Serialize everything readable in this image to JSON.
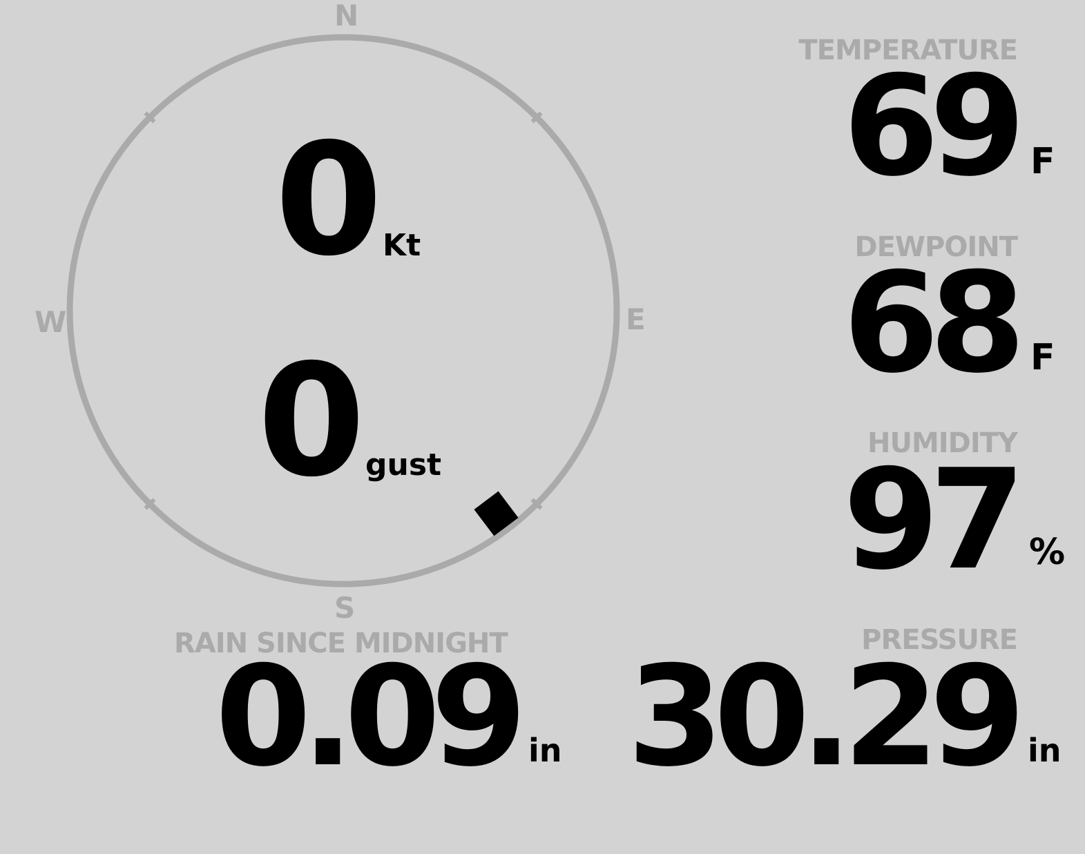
{
  "compass": {
    "north": "N",
    "south": "S",
    "east": "E",
    "west": "W",
    "wind_direction_deg": 143,
    "ring_color": "#aaaaaa",
    "marker_color": "#000000"
  },
  "wind": {
    "speed": "0",
    "speed_unit": "Kt",
    "gust": "0",
    "gust_unit": "gust"
  },
  "temperature": {
    "label": "TEMPERATURE",
    "value": "69",
    "unit": "F"
  },
  "dewpoint": {
    "label": "DEWPOINT",
    "value": "68",
    "unit": "F"
  },
  "humidity": {
    "label": "HUMIDITY",
    "value": "97",
    "unit": "%"
  },
  "pressure": {
    "label": "PRESSURE",
    "value": "30.29",
    "unit": "in"
  },
  "rain": {
    "label": "RAIN SINCE MIDNIGHT",
    "value": "0.09",
    "unit": "in"
  },
  "colors": {
    "background": "#d3d3d3",
    "label": "#aaaaaa",
    "value": "#000000"
  }
}
